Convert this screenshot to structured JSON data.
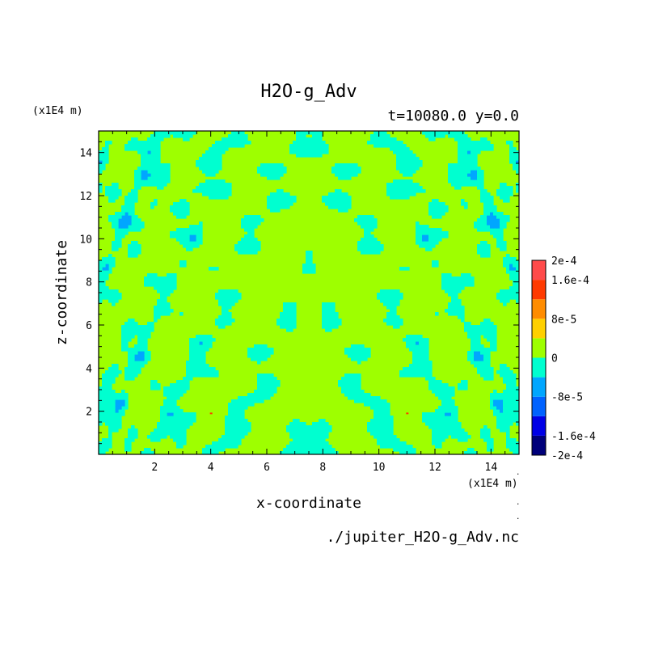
{
  "chart_data": {
    "type": "heatmap",
    "title": "H2O-g_Adv",
    "subtitle": "t=10080.0 y=0.0",
    "xlabel": "x-coordinate",
    "ylabel": "z-coordinate",
    "x_unit": "(x1E4 m)",
    "y_unit": "(x1E4 m)",
    "xlim": [
      0,
      15
    ],
    "ylim": [
      0,
      15
    ],
    "x_ticks": [
      "2",
      "4",
      "6",
      "8",
      "10",
      "12",
      "14"
    ],
    "y_ticks": [
      "2",
      "4",
      "6",
      "8",
      "10",
      "12",
      "14"
    ],
    "colorbar": {
      "levels": [
        -0.0002,
        -0.00016,
        -0.00012,
        -8e-05,
        -4e-05,
        0,
        4e-05,
        8e-05,
        0.00012,
        0.00016,
        0.0002
      ],
      "colors": [
        "#00007a",
        "#0000e6",
        "#0062ff",
        "#00a6ff",
        "#00ffd0",
        "#9eff00",
        "#ffd000",
        "#ff8c00",
        "#ff3a00",
        "#ff4a4a"
      ],
      "tick_labels": [
        {
          "level": 0.0002,
          "label": "2e-4"
        },
        {
          "level": 0.00016,
          "label": "1.6e-4"
        },
        {
          "level": 8e-05,
          "label": "8e-5"
        },
        {
          "level": 0,
          "label": "0"
        },
        {
          "level": -8e-05,
          "label": "-8e-5"
        },
        {
          "level": -0.00016,
          "label": "-1.6e-4"
        },
        {
          "level": -0.0002,
          "label": "-2e-4"
        }
      ]
    },
    "dominant_values": {
      "positive_small": "0 to 4e-5",
      "negative_small": "-4e-5 to 0"
    },
    "symmetry": "mirror about x = 7.5",
    "grid": false
  },
  "footer": {
    "filename": "./jupiter_H2O-g_Adv.nc"
  }
}
